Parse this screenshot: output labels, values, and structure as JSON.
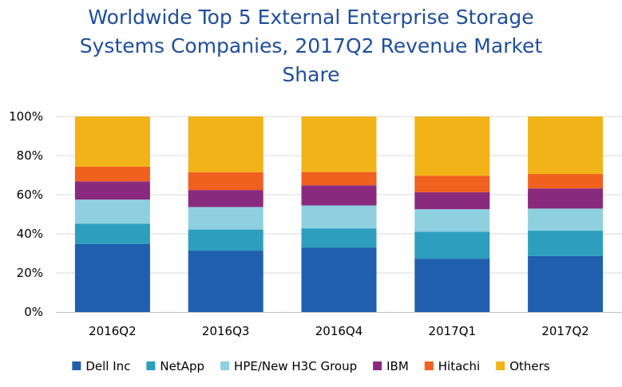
{
  "chart_data": {
    "type": "bar",
    "stacked": true,
    "title_lines": [
      "Worldwide Top 5 External Enterprise Storage",
      "Systems Companies, 2017Q2 Revenue Market",
      "Share"
    ],
    "categories": [
      "2016Q2",
      "2016Q3",
      "2016Q4",
      "2017Q1",
      "2017Q2"
    ],
    "y_ticks": [
      "0%",
      "20%",
      "40%",
      "60%",
      "80%",
      "100%"
    ],
    "ylim": [
      0,
      100
    ],
    "grid": true,
    "legend_position": "bottom",
    "series": [
      {
        "name": "Dell Inc",
        "color": "#1f5fae",
        "values": [
          34.7,
          31.4,
          33.0,
          27.3,
          28.6
        ]
      },
      {
        "name": "NetApp",
        "color": "#2e9ebe",
        "values": [
          10.5,
          10.8,
          9.8,
          13.8,
          13.0
        ]
      },
      {
        "name": "HPE/New H3C Group",
        "color": "#8fd0e0",
        "values": [
          12.3,
          11.5,
          11.7,
          11.5,
          11.3
        ]
      },
      {
        "name": "IBM",
        "color": "#8a2a7e",
        "values": [
          9.3,
          8.7,
          10.3,
          8.7,
          10.3
        ]
      },
      {
        "name": "Hitachi",
        "color": "#f0601e",
        "values": [
          7.6,
          9.1,
          6.8,
          8.4,
          7.4
        ]
      },
      {
        "name": "Others",
        "color": "#f2b318",
        "values": [
          25.6,
          28.5,
          28.4,
          30.3,
          29.4
        ]
      }
    ]
  }
}
